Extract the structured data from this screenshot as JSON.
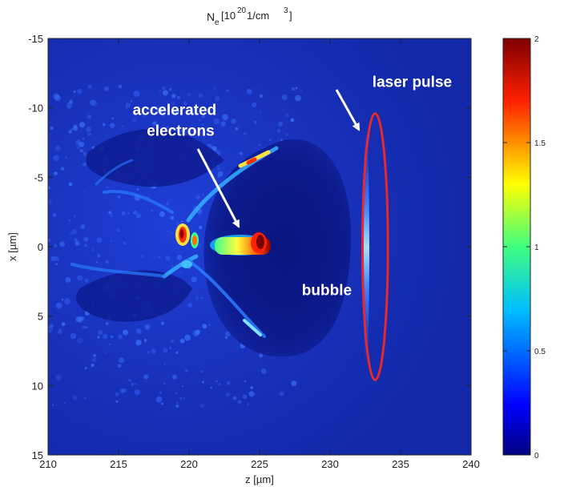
{
  "chart_data": {
    "type": "heatmap",
    "title_main": "N",
    "title_sub": "e",
    "title_rest": "[10",
    "title_exp": "20",
    "title_unit": " 1/cm",
    "title_exp2": "3",
    "title_close": "]",
    "xlabel": "z [µm]",
    "ylabel": "x [µm]",
    "xlim": [
      210,
      240
    ],
    "ylim": [
      -15,
      15
    ],
    "y_reversed": true,
    "x_ticks": [
      "210",
      "215",
      "220",
      "225",
      "230",
      "235",
      "240"
    ],
    "y_ticks": [
      "-15",
      "-10",
      "-5",
      "0",
      "5",
      "10",
      "15"
    ],
    "colorbar": {
      "range": [
        0,
        2
      ],
      "ticks": [
        "0",
        "0.5",
        "1",
        "1.5",
        "2"
      ],
      "colormap": "jet"
    },
    "annotations": [
      {
        "name": "laser-pulse-label",
        "text": "laser pulse",
        "x": 233,
        "y": -11.5
      },
      {
        "name": "accelerated-label-line1",
        "text": "accelerated",
        "x": 216,
        "y": -9.5
      },
      {
        "name": "accelerated-label-line2",
        "text": "electrons",
        "x": 217,
        "y": -8
      },
      {
        "name": "bubble-label",
        "text": "bubble",
        "x": 228,
        "y": 3.5
      }
    ],
    "laser_pulse_ellipse": {
      "z_center": 233.2,
      "x_center": 0,
      "z_half_width": 0.9,
      "x_half_height": 9.6,
      "color": "#e8282c"
    },
    "colors": {
      "background_low": "#0c1a8c",
      "background_mid": "#1a37c4",
      "high": "#ff3300",
      "peak": "#7a0000",
      "laser": "#7fbfff",
      "ellipse": "#e8282c",
      "arrow": "#ffffff"
    }
  }
}
